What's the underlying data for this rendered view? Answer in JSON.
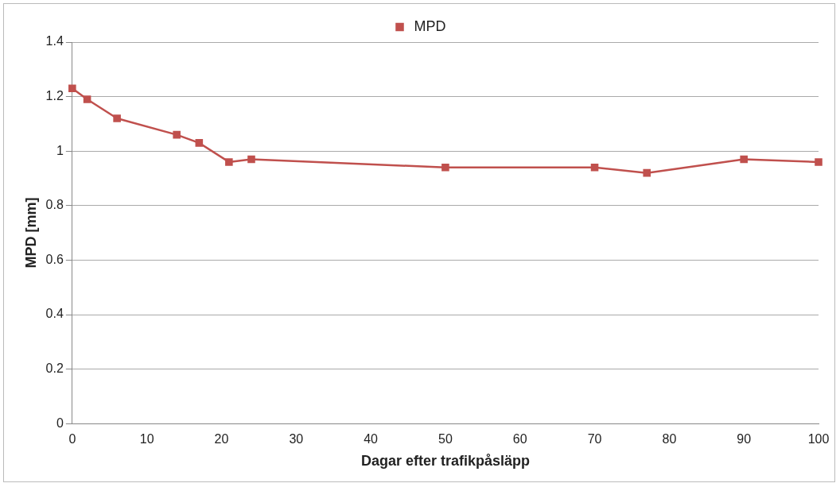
{
  "chart_data": {
    "type": "line",
    "xlabel": "Dagar efter trafikpåsläpp",
    "ylabel": "MPD [mm]",
    "x": [
      0,
      2,
      6,
      14,
      17,
      21,
      24,
      50,
      70,
      77,
      90,
      100
    ],
    "series": [
      {
        "name": "MPD",
        "color": "#c0504d",
        "values": [
          1.23,
          1.19,
          1.12,
          1.06,
          1.03,
          0.96,
          0.97,
          0.94,
          0.94,
          0.92,
          0.97,
          0.96
        ]
      }
    ],
    "xlim": [
      0,
      100
    ],
    "xticks": [
      0,
      10,
      20,
      30,
      40,
      50,
      60,
      70,
      80,
      90,
      100
    ],
    "ylim": [
      0,
      1.4
    ],
    "yticks": [
      0,
      0.2,
      0.4,
      0.6,
      0.8,
      1,
      1.2,
      1.4
    ],
    "grid": "y",
    "legend": "top",
    "marker": "square",
    "line_style": "solid"
  }
}
